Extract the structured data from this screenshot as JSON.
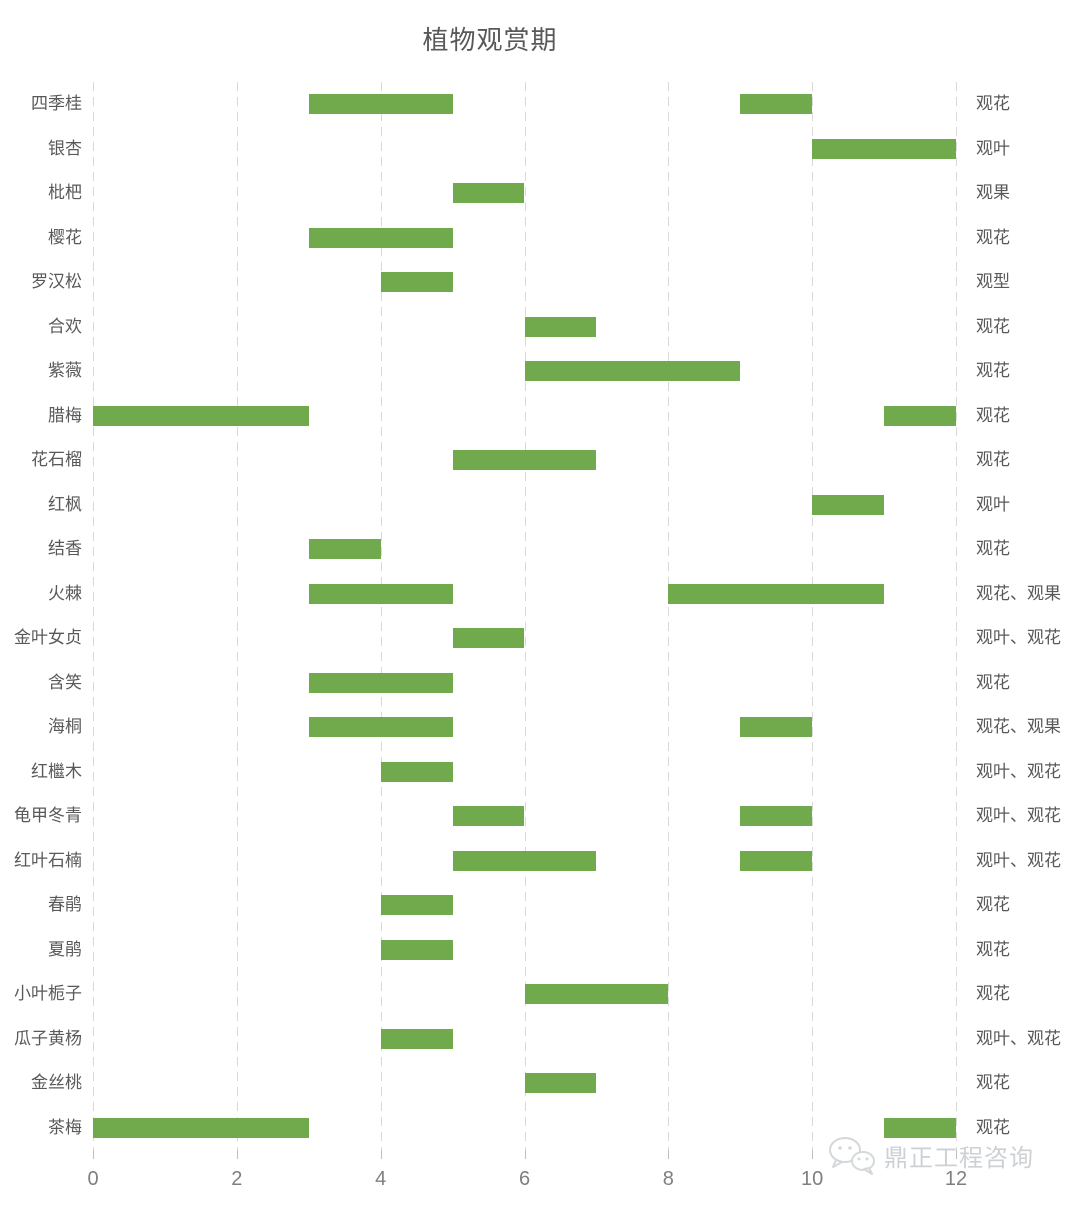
{
  "title": "植物观赏期",
  "watermark": {
    "text": "鼎正工程咨询"
  },
  "colors": {
    "bar_green": "#71A94D",
    "grid_gray": "#D9D9D9",
    "tick_gray": "#BFBFBF",
    "label_gray": "#595959",
    "axis_text_gray": "#7F7F7F",
    "watermark_gray": "#C5CACD"
  },
  "chart_data": {
    "type": "bar",
    "subtype": "horizontal-gantt",
    "title": "植物观赏期",
    "xlabel": "",
    "ylabel": "",
    "xlim": [
      0,
      12
    ],
    "x_ticks": [
      0,
      2,
      4,
      6,
      8,
      10,
      12
    ],
    "grid": "vertical-dashed",
    "legend": "none",
    "bar_color": "#71A94D",
    "rows": [
      {
        "name": "四季桂",
        "periods": [
          [
            3,
            5
          ],
          [
            9,
            10
          ]
        ],
        "note": "观花"
      },
      {
        "name": "银杏",
        "periods": [
          [
            10,
            12
          ]
        ],
        "note": "观叶"
      },
      {
        "name": "枇杷",
        "periods": [
          [
            5,
            6
          ]
        ],
        "note": "观果"
      },
      {
        "name": "樱花",
        "periods": [
          [
            3,
            5
          ]
        ],
        "note": "观花"
      },
      {
        "name": "罗汉松",
        "periods": [
          [
            4,
            5
          ]
        ],
        "note": "观型"
      },
      {
        "name": "合欢",
        "periods": [
          [
            6,
            7
          ]
        ],
        "note": "观花"
      },
      {
        "name": "紫薇",
        "periods": [
          [
            6,
            9
          ]
        ],
        "note": "观花"
      },
      {
        "name": "腊梅",
        "periods": [
          [
            0,
            3
          ],
          [
            11,
            12
          ]
        ],
        "note": "观花"
      },
      {
        "name": "花石榴",
        "periods": [
          [
            5,
            7
          ]
        ],
        "note": "观花"
      },
      {
        "name": "红枫",
        "periods": [
          [
            10,
            11
          ]
        ],
        "note": "观叶"
      },
      {
        "name": "结香",
        "periods": [
          [
            3,
            4
          ]
        ],
        "note": "观花"
      },
      {
        "name": "火棘",
        "periods": [
          [
            3,
            5
          ],
          [
            8,
            11
          ]
        ],
        "note": "观花、观果"
      },
      {
        "name": "金叶女贞",
        "periods": [
          [
            5,
            6
          ]
        ],
        "note": "观叶、观花"
      },
      {
        "name": "含笑",
        "periods": [
          [
            3,
            5
          ]
        ],
        "note": "观花"
      },
      {
        "name": "海桐",
        "periods": [
          [
            3,
            5
          ],
          [
            9,
            10
          ]
        ],
        "note": "观花、观果"
      },
      {
        "name": "红檵木",
        "periods": [
          [
            4,
            5
          ]
        ],
        "note": "观叶、观花"
      },
      {
        "name": "龟甲冬青",
        "periods": [
          [
            5,
            6
          ],
          [
            9,
            10
          ]
        ],
        "note": "观叶、观花"
      },
      {
        "name": "红叶石楠",
        "periods": [
          [
            5,
            7
          ],
          [
            9,
            10
          ]
        ],
        "note": "观叶、观花"
      },
      {
        "name": "春鹃",
        "periods": [
          [
            4,
            5
          ]
        ],
        "note": "观花"
      },
      {
        "name": "夏鹃",
        "periods": [
          [
            4,
            5
          ]
        ],
        "note": "观花"
      },
      {
        "name": "小叶栀子",
        "periods": [
          [
            6,
            8
          ]
        ],
        "note": "观花"
      },
      {
        "name": "瓜子黄杨",
        "periods": [
          [
            4,
            5
          ]
        ],
        "note": "观叶、观花"
      },
      {
        "name": "金丝桃",
        "periods": [
          [
            6,
            7
          ]
        ],
        "note": "观花"
      },
      {
        "name": "茶梅",
        "periods": [
          [
            0,
            3
          ],
          [
            11,
            12
          ]
        ],
        "note": "观花"
      }
    ]
  }
}
